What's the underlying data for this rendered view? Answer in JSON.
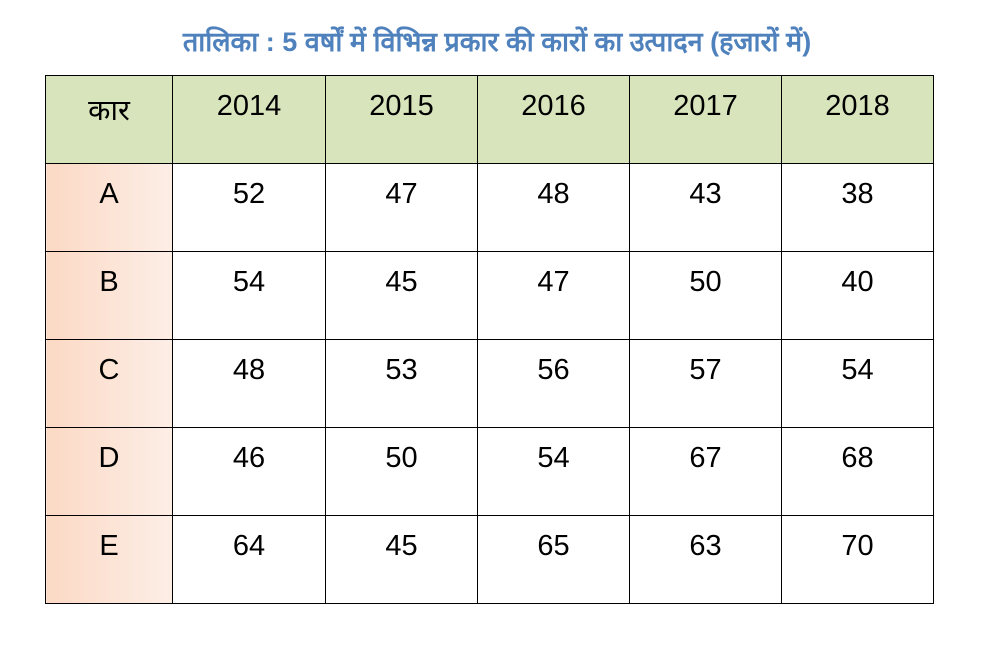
{
  "title": "तालिका : 5 वर्षों में विभिन्न प्रकार की कारों का उत्पादन (हजारों में)",
  "table": {
    "header": [
      "कार",
      "2014",
      "2015",
      "2016",
      "2017",
      "2018"
    ],
    "rows": [
      [
        "A",
        52,
        47,
        48,
        43,
        38
      ],
      [
        "B",
        54,
        45,
        47,
        50,
        40
      ],
      [
        "C",
        48,
        53,
        56,
        57,
        54
      ],
      [
        "D",
        46,
        50,
        54,
        67,
        68
      ],
      [
        "E",
        64,
        45,
        65,
        63,
        70
      ]
    ]
  }
}
